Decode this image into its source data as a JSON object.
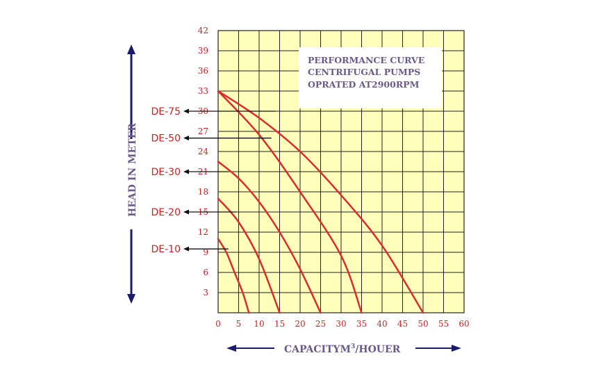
{
  "chart_data": {
    "type": "line",
    "title_lines": [
      "PERFORMANCE CURVE",
      "CENTRIFUGAL PUMPS",
      "OPRATED AT2900RPM"
    ],
    "xlabel_main": "CAPACITYM",
    "xlabel_sup": "3",
    "xlabel_tail": "/HOUER",
    "ylabel": "HEAD IN METER",
    "xlim": [
      0,
      60
    ],
    "ylim": [
      0,
      42
    ],
    "x_ticks": [
      "0",
      "5",
      "10",
      "15",
      "20",
      "25",
      "30",
      "35",
      "40",
      "45",
      "50",
      "55",
      "60"
    ],
    "y_ticks": [
      "3",
      "6",
      "9",
      "12",
      "15",
      "18",
      "21",
      "24",
      "27",
      "30",
      "33",
      "36",
      "39",
      "42"
    ],
    "grid": true,
    "series": [
      {
        "name": "DE-75",
        "x": [
          0,
          10,
          20,
          30,
          40,
          50
        ],
        "y": [
          33,
          29,
          24,
          17.5,
          10,
          0
        ]
      },
      {
        "name": "DE-50",
        "x": [
          0,
          10,
          20,
          30,
          35
        ],
        "y": [
          33,
          26.5,
          18,
          8.5,
          0
        ]
      },
      {
        "name": "DE-30",
        "x": [
          0,
          5,
          10,
          15,
          20,
          25
        ],
        "y": [
          22.5,
          20,
          16.5,
          12,
          6.5,
          0
        ]
      },
      {
        "name": "DE-20",
        "x": [
          0,
          5,
          10,
          15
        ],
        "y": [
          17,
          13.5,
          8,
          0
        ]
      },
      {
        "name": "DE-10",
        "x": [
          0,
          2,
          4,
          6,
          7.5
        ],
        "y": [
          11,
          9,
          6,
          3,
          0
        ]
      }
    ],
    "pointers": [
      {
        "label": "DE-75",
        "x": 14,
        "y": 30
      },
      {
        "label": "DE-50",
        "x": 13,
        "y": 26
      },
      {
        "label": "DE-30",
        "x": 2.5,
        "y": 21
      },
      {
        "label": "DE-20",
        "x": 4.5,
        "y": 15
      },
      {
        "label": "DE-10",
        "x": 2.5,
        "y": 9.5
      }
    ],
    "colors": {
      "curve": "#dd2a2a",
      "plot_bg": "#ffffbb",
      "grid": "#222222",
      "label_text": "#cc2222",
      "axis_title": "#6a5a8a",
      "axis_arrow": "#1a1a6e",
      "pointer": "#111111",
      "title_box": "#ffffff"
    }
  }
}
